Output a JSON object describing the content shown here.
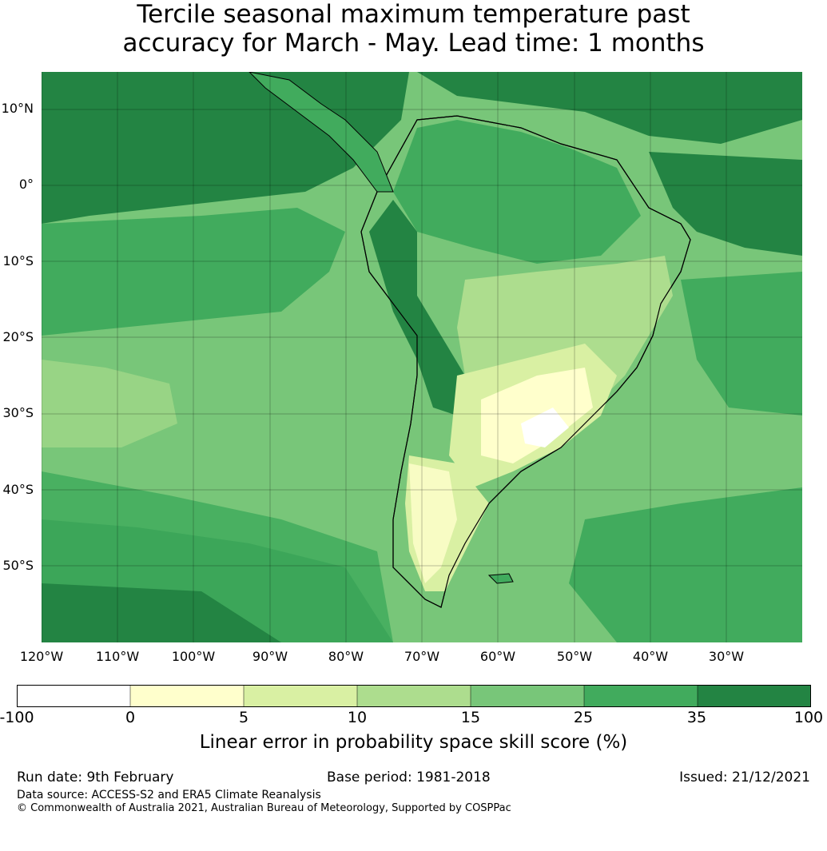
{
  "title": {
    "line1": "Tercile seasonal maximum temperature past",
    "line2": "accuracy for March - May. Lead time: 1 months"
  },
  "map": {
    "lat_labels": [
      "10°N",
      "0°",
      "10°S",
      "20°S",
      "30°S",
      "40°S",
      "50°S"
    ],
    "lon_labels": [
      "120°W",
      "110°W",
      "100°W",
      "90°W",
      "80°W",
      "70°W",
      "60°W",
      "50°W",
      "40°W",
      "30°W"
    ],
    "extent": {
      "lon": [
        -120,
        -20
      ],
      "lat": [
        -60,
        15
      ]
    },
    "grid": true
  },
  "colorbar": {
    "ticks": [
      "-100",
      "0",
      "5",
      "10",
      "15",
      "25",
      "35",
      "100"
    ],
    "colors": [
      "#ffffff",
      "#ffffcc",
      "#d9f0a3",
      "#addd8e",
      "#78c679",
      "#41ab5d",
      "#238443"
    ],
    "label": "Linear error in probability space skill score (%)"
  },
  "footer": {
    "run_date": "Run date: 9th February",
    "base_period": "Base period: 1981-2018",
    "issued": "Issued: 21/12/2021",
    "data_source": "Data source: ACCESS-S2 and ERA5 Climate Reanalysis",
    "copyright": "© Commonwealth of Australia 2021, Australian Bureau of Meteorology, Supported by COSPPac"
  }
}
